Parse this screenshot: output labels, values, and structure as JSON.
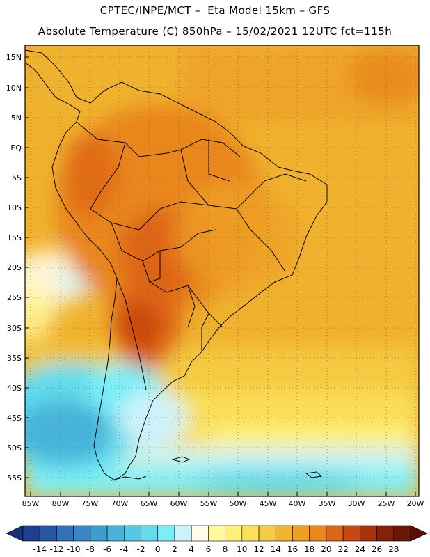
{
  "header": {
    "line1": "CPTEC/INPE/MCT –  Eta Model 15km – GFS",
    "line2": "Absolute Temperature (C) 850hPa – 15/02/2021 12UTC fct=115h"
  },
  "map": {
    "region": "South America",
    "lon_range": [
      -85,
      -20
    ],
    "lat_range": [
      -58,
      17
    ],
    "lat_labels": [
      "15N",
      "10N",
      "5N",
      "EQ",
      "5S",
      "10S",
      "15S",
      "20S",
      "25S",
      "30S",
      "35S",
      "40S",
      "45S",
      "50S",
      "55S"
    ],
    "lon_labels": [
      "85W",
      "80W",
      "75W",
      "70W",
      "65W",
      "60W",
      "55W",
      "50W",
      "45W",
      "40W",
      "35W",
      "30W",
      "25W",
      "20W"
    ],
    "grid": "dotted"
  },
  "colorbar": {
    "levels": [
      "-14",
      "-12",
      "-10",
      "-8",
      "-6",
      "-4",
      "-2",
      "0",
      "2",
      "4",
      "6",
      "8",
      "10",
      "12",
      "14",
      "16",
      "18",
      "20",
      "22",
      "24",
      "26",
      "28"
    ],
    "colors": [
      "#1d3f8f",
      "#2856a3",
      "#3470b5",
      "#3a86c2",
      "#3f9dce",
      "#47b3da",
      "#55c8e3",
      "#62dced",
      "#7aeef7",
      "#cdf3fa",
      "#fffbe6",
      "#fffaa0",
      "#fff07a",
      "#fbe05a",
      "#f5cc42",
      "#f0b52e",
      "#eea024",
      "#e9861c",
      "#dd6515",
      "#c94710",
      "#a8300c",
      "#85200a",
      "#6a1608"
    ],
    "under_color": "#1a2f7a",
    "over_color": "#5a0f06"
  }
}
